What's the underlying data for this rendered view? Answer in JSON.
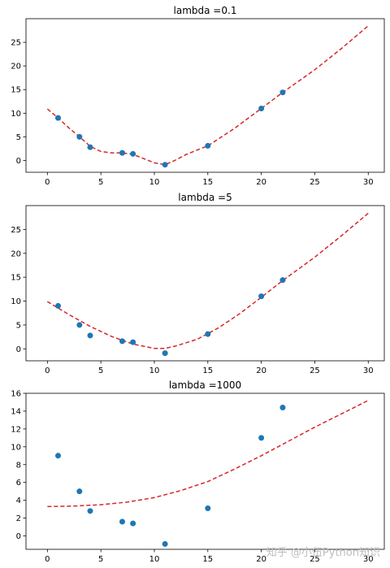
{
  "chart_data": [
    {
      "type": "scatter",
      "title": "lambda =0.1",
      "xlim": [
        -2,
        31.5
      ],
      "ylim": [
        -2.5,
        30
      ],
      "xticks": [
        0,
        5,
        10,
        15,
        20,
        25,
        30
      ],
      "yticks": [
        0,
        5,
        10,
        15,
        20,
        25
      ],
      "grid": false,
      "series": [
        {
          "kind": "scatter",
          "color": "#1f77b4",
          "x": [
            1,
            3,
            4,
            7,
            8,
            11,
            15,
            20,
            22
          ],
          "y": [
            9.0,
            5.0,
            2.8,
            1.6,
            1.4,
            -0.9,
            3.1,
            11.0,
            14.4
          ]
        },
        {
          "kind": "line",
          "style": "dashed",
          "color": "#d62728",
          "x": [
            0,
            1,
            2,
            3,
            4,
            5,
            6,
            7,
            8,
            9,
            10,
            11,
            12,
            13,
            15,
            17.5,
            20,
            22,
            25,
            27.5,
            30
          ],
          "y": [
            10.9,
            9.0,
            6.9,
            5.0,
            3.0,
            1.9,
            1.6,
            1.6,
            1.3,
            0.4,
            -0.5,
            -0.9,
            0.1,
            1.3,
            3.1,
            6.8,
            11.0,
            14.4,
            19.2,
            23.7,
            28.5
          ]
        }
      ]
    },
    {
      "type": "scatter",
      "title": "lambda =5",
      "xlim": [
        -2,
        31.5
      ],
      "ylim": [
        -2.5,
        30
      ],
      "xticks": [
        0,
        5,
        10,
        15,
        20,
        25,
        30
      ],
      "yticks": [
        0,
        5,
        10,
        15,
        20,
        25
      ],
      "grid": false,
      "series": [
        {
          "kind": "scatter",
          "color": "#1f77b4",
          "x": [
            1,
            3,
            4,
            7,
            8,
            11,
            15,
            20,
            22
          ],
          "y": [
            9.0,
            5.0,
            2.8,
            1.6,
            1.4,
            -0.9,
            3.1,
            11.0,
            14.4
          ]
        },
        {
          "kind": "line",
          "style": "dashed",
          "color": "#d62728",
          "x": [
            0,
            2,
            4,
            6,
            8,
            10,
            11,
            12,
            14,
            16,
            18,
            20,
            22,
            25,
            27.5,
            30
          ],
          "y": [
            9.9,
            7.2,
            4.7,
            2.6,
            1.0,
            0.1,
            0.1,
            0.6,
            2.0,
            4.4,
            7.4,
            10.8,
            14.3,
            19.2,
            23.7,
            28.4
          ]
        }
      ]
    },
    {
      "type": "scatter",
      "title": "lambda =1000",
      "xlim": [
        -2,
        31.5
      ],
      "ylim": [
        -1.5,
        16
      ],
      "xticks": [
        0,
        5,
        10,
        15,
        20,
        25,
        30
      ],
      "yticks": [
        0,
        2,
        4,
        6,
        8,
        10,
        12,
        14,
        16
      ],
      "grid": false,
      "series": [
        {
          "kind": "scatter",
          "color": "#1f77b4",
          "x": [
            1,
            3,
            4,
            7,
            8,
            11,
            15,
            20,
            22
          ],
          "y": [
            9.0,
            5.0,
            2.8,
            1.6,
            1.4,
            -0.9,
            3.1,
            11.0,
            14.4
          ]
        },
        {
          "kind": "line",
          "style": "dashed",
          "color": "#d62728",
          "x": [
            0,
            2.5,
            5,
            7.5,
            10,
            12.5,
            15,
            17.5,
            20,
            22.5,
            25,
            27.5,
            30
          ],
          "y": [
            3.3,
            3.35,
            3.5,
            3.8,
            4.3,
            5.1,
            6.1,
            7.5,
            9.0,
            10.6,
            12.2,
            13.7,
            15.2
          ]
        }
      ]
    }
  ],
  "watermark": "知乎 @小伍Python知识"
}
